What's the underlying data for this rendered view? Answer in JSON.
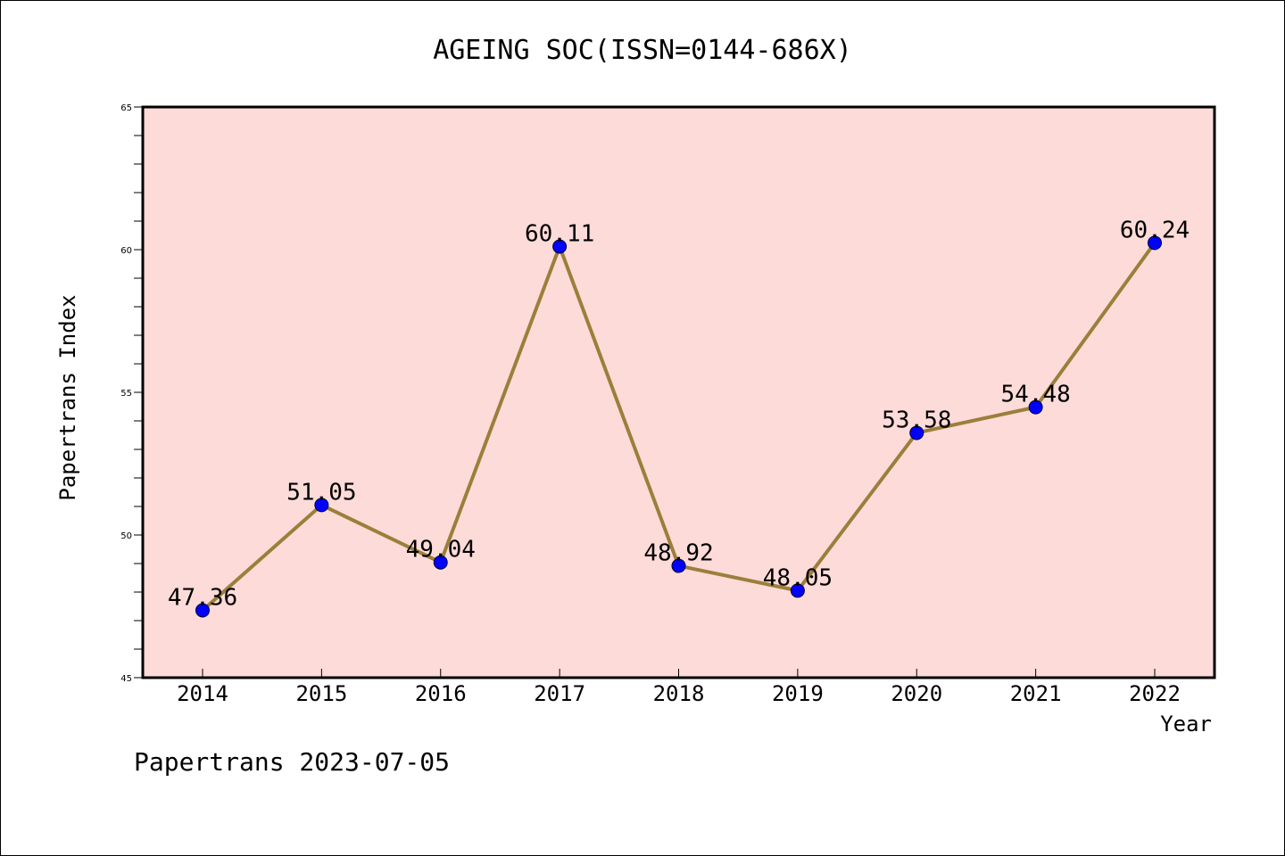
{
  "chart_data": {
    "type": "line",
    "title": "AGEING SOC(ISSN=0144-686X)",
    "xlabel": "Year",
    "ylabel": "Papertrans Index",
    "categories": [
      "2014",
      "2015",
      "2016",
      "2017",
      "2018",
      "2019",
      "2020",
      "2021",
      "2022"
    ],
    "values": [
      47.36,
      51.05,
      49.04,
      60.11,
      48.92,
      48.05,
      53.58,
      54.48,
      60.24
    ],
    "data_labels": [
      "47.36",
      "51.05",
      "49.04",
      "60.11",
      "48.92",
      "48.05",
      "53.58",
      "54.48",
      "60.24"
    ],
    "ylim": [
      45,
      65
    ],
    "yticks": [
      "45",
      "50",
      "55",
      "60",
      "65"
    ],
    "grid": false,
    "colors": {
      "plot_background": "#fddbd9",
      "line": "#9b7f3a",
      "marker": "#0000ff"
    }
  },
  "footer": "Papertrans 2023-07-05"
}
